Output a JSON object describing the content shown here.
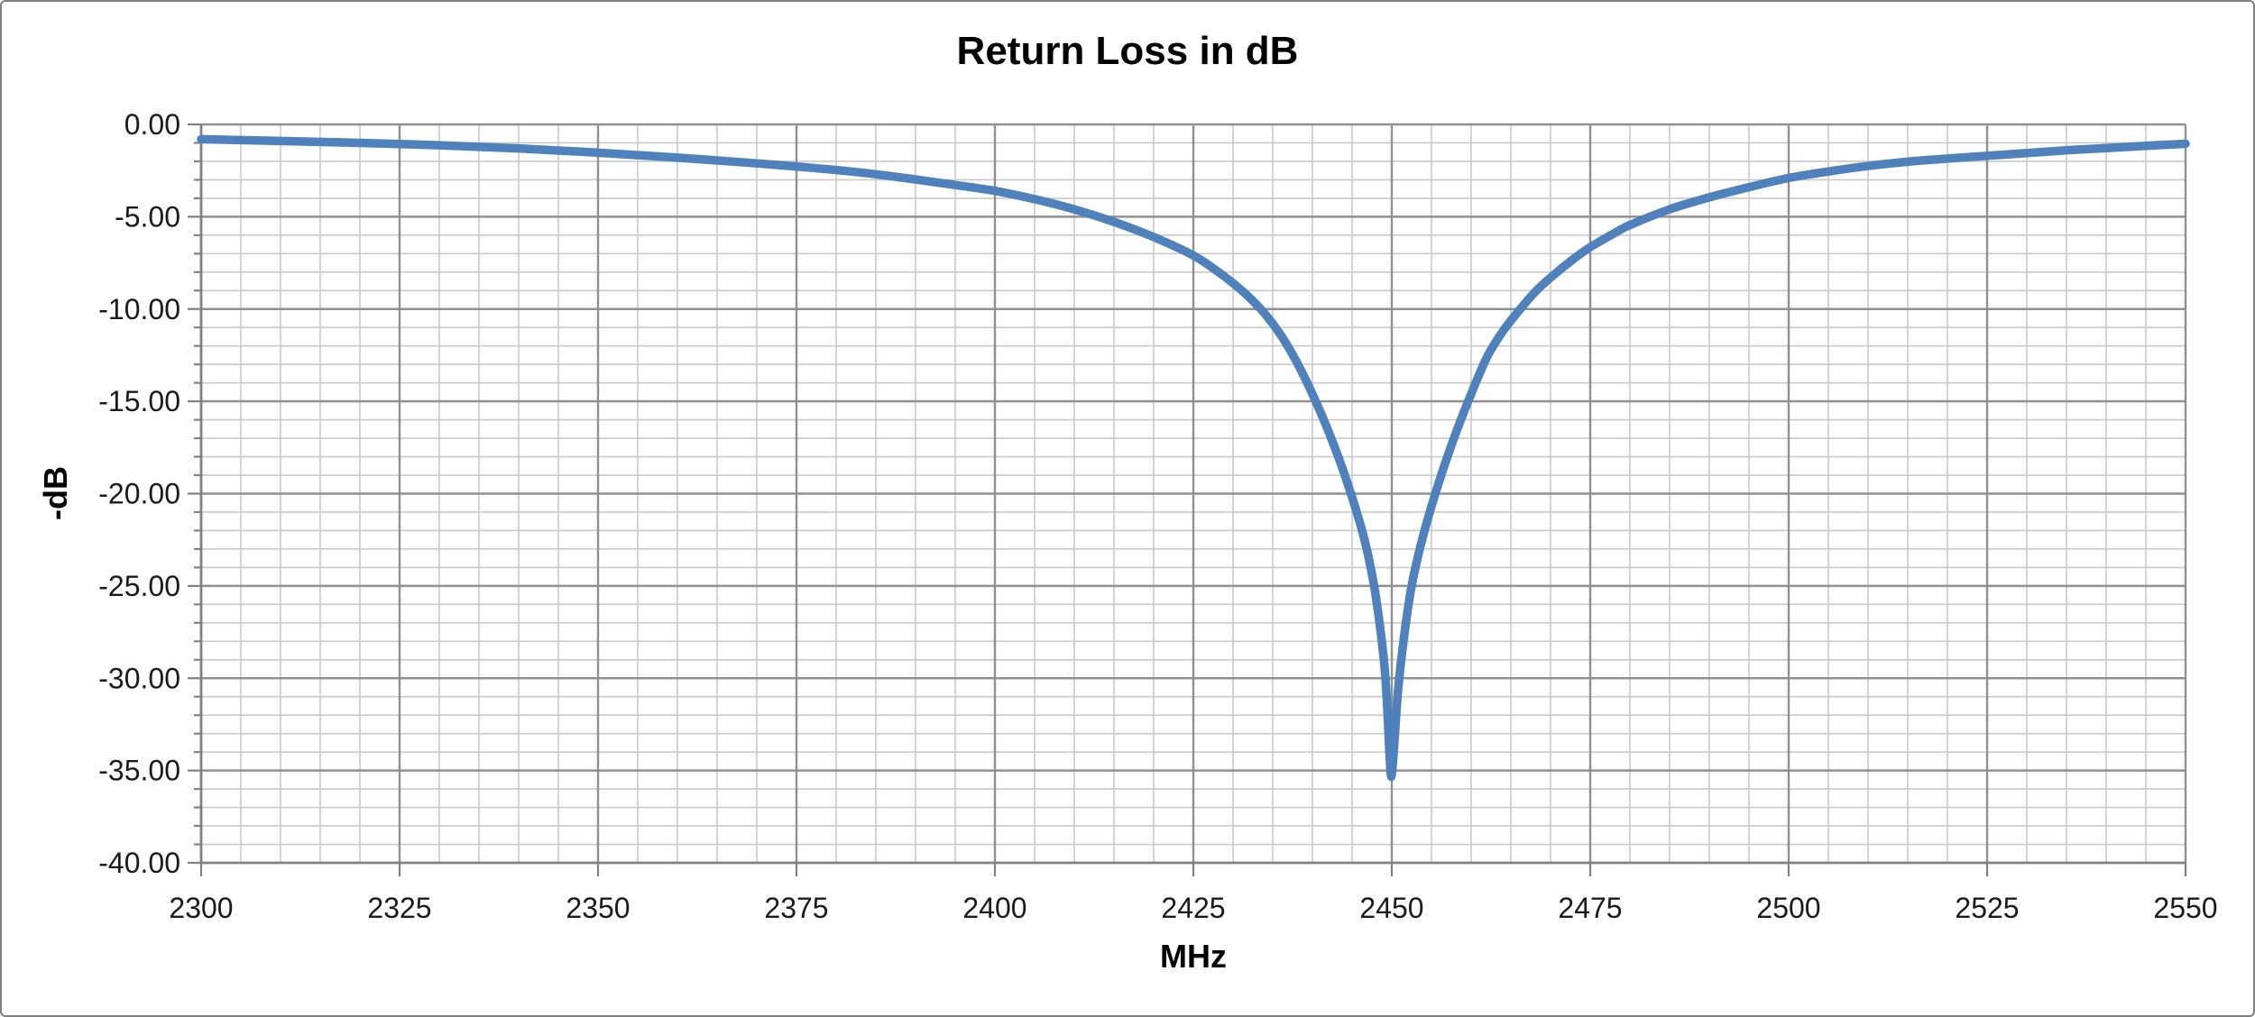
{
  "chart": {
    "title": "Return Loss in dB",
    "x_axis_title": "MHz",
    "y_axis_title": "-dB"
  },
  "chart_data": {
    "type": "line",
    "title": "Return Loss in dB",
    "xlabel": "MHz",
    "ylabel": "-dB",
    "xlim": [
      2300,
      2550
    ],
    "ylim": [
      -40,
      0
    ],
    "x_major_step": 25,
    "x_minor_step": 5,
    "y_major_step": 5,
    "y_minor_step": 1,
    "grid": "major+minor",
    "legend": "none",
    "x_tick_labels": [
      "2300",
      "2325",
      "2350",
      "2375",
      "2400",
      "2425",
      "2450",
      "2475",
      "2500",
      "2525",
      "2550"
    ],
    "y_tick_labels": [
      "0.00",
      "-5.00",
      "-10.00",
      "-15.00",
      "-20.00",
      "-25.00",
      "-30.00",
      "-35.00",
      "-40.00"
    ],
    "colors": {
      "line": "#4F81BD",
      "major_grid": "#909090",
      "minor_grid": "#C9C9C9",
      "axis": "#808080",
      "text": "#1a1a1a",
      "frame_border": "#7f7f7f"
    },
    "series": [
      {
        "name": "Return Loss",
        "color": "#4F81BD",
        "min_point": {
          "x": 2449.9,
          "y": -35.3
        },
        "points": [
          [
            2300,
            -0.8
          ],
          [
            2310,
            -0.9
          ],
          [
            2320,
            -1.0
          ],
          [
            2330,
            -1.13
          ],
          [
            2340,
            -1.3
          ],
          [
            2350,
            -1.53
          ],
          [
            2360,
            -1.8
          ],
          [
            2370,
            -2.11
          ],
          [
            2375,
            -2.28
          ],
          [
            2380,
            -2.47
          ],
          [
            2385,
            -2.7
          ],
          [
            2390,
            -2.98
          ],
          [
            2395,
            -3.28
          ],
          [
            2400,
            -3.6
          ],
          [
            2405,
            -4.05
          ],
          [
            2410,
            -4.6
          ],
          [
            2415,
            -5.28
          ],
          [
            2420,
            -6.1
          ],
          [
            2425,
            -7.1
          ],
          [
            2428,
            -7.95
          ],
          [
            2430,
            -8.6
          ],
          [
            2432,
            -9.35
          ],
          [
            2434,
            -10.25
          ],
          [
            2436,
            -11.4
          ],
          [
            2438,
            -12.85
          ],
          [
            2440,
            -14.6
          ],
          [
            2442,
            -16.6
          ],
          [
            2444,
            -18.9
          ],
          [
            2446,
            -21.6
          ],
          [
            2447,
            -23.3
          ],
          [
            2448,
            -25.6
          ],
          [
            2449,
            -29.0
          ],
          [
            2449.4,
            -31.4
          ],
          [
            2449.7,
            -34.0
          ],
          [
            2449.9,
            -35.3
          ],
          [
            2450.1,
            -34.8
          ],
          [
            2450.4,
            -33.0
          ],
          [
            2450.8,
            -30.6
          ],
          [
            2451.5,
            -27.9
          ],
          [
            2452.5,
            -25.0
          ],
          [
            2454,
            -22.2
          ],
          [
            2456,
            -19.3
          ],
          [
            2458,
            -16.8
          ],
          [
            2460,
            -14.6
          ],
          [
            2462,
            -12.6
          ],
          [
            2464,
            -11.2
          ],
          [
            2466,
            -10.1
          ],
          [
            2468,
            -9.1
          ],
          [
            2470,
            -8.3
          ],
          [
            2473,
            -7.25
          ],
          [
            2475,
            -6.65
          ],
          [
            2478,
            -5.9
          ],
          [
            2480,
            -5.45
          ],
          [
            2485,
            -4.6
          ],
          [
            2490,
            -3.95
          ],
          [
            2495,
            -3.4
          ],
          [
            2500,
            -2.9
          ],
          [
            2505,
            -2.55
          ],
          [
            2510,
            -2.25
          ],
          [
            2515,
            -2.02
          ],
          [
            2520,
            -1.85
          ],
          [
            2525,
            -1.7
          ],
          [
            2530,
            -1.55
          ],
          [
            2535,
            -1.4
          ],
          [
            2540,
            -1.28
          ],
          [
            2545,
            -1.16
          ],
          [
            2550,
            -1.05
          ]
        ]
      }
    ]
  }
}
